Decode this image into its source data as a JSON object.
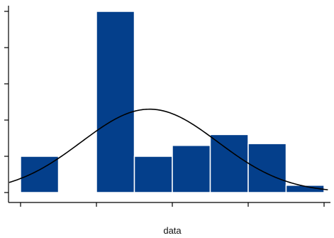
{
  "chart_data": {
    "type": "bar",
    "subtype": "histogram-with-normal-curve",
    "xlabel": "data",
    "ylabel": "",
    "title": "",
    "bins": [
      {
        "x0": 0,
        "x1": 1,
        "value": 1.0
      },
      {
        "x0": 1,
        "x1": 2,
        "value": 0
      },
      {
        "x0": 2,
        "x1": 3,
        "value": 5.0
      },
      {
        "x0": 3,
        "x1": 4,
        "value": 1.0
      },
      {
        "x0": 4,
        "x1": 5,
        "value": 1.3
      },
      {
        "x0": 5,
        "x1": 6,
        "value": 1.6
      },
      {
        "x0": 6,
        "x1": 7,
        "value": 1.35
      },
      {
        "x0": 7,
        "x1": 8,
        "value": 0.2
      }
    ],
    "curve": {
      "type": "normal",
      "mean": 3.4,
      "sd": 1.8,
      "peak": 2.3
    },
    "xlim": [
      -0.2,
      8.1
    ],
    "ylim": [
      -0.2,
      5.1
    ],
    "x_ticks": [
      0,
      2,
      4,
      6,
      8
    ],
    "y_ticks": [
      0,
      1,
      2,
      3,
      4,
      5
    ],
    "grid": false,
    "colors": {
      "bar": "#043f8b",
      "bar_edge": "#ffffff",
      "curve": "#000000",
      "axis": "#000000"
    }
  }
}
